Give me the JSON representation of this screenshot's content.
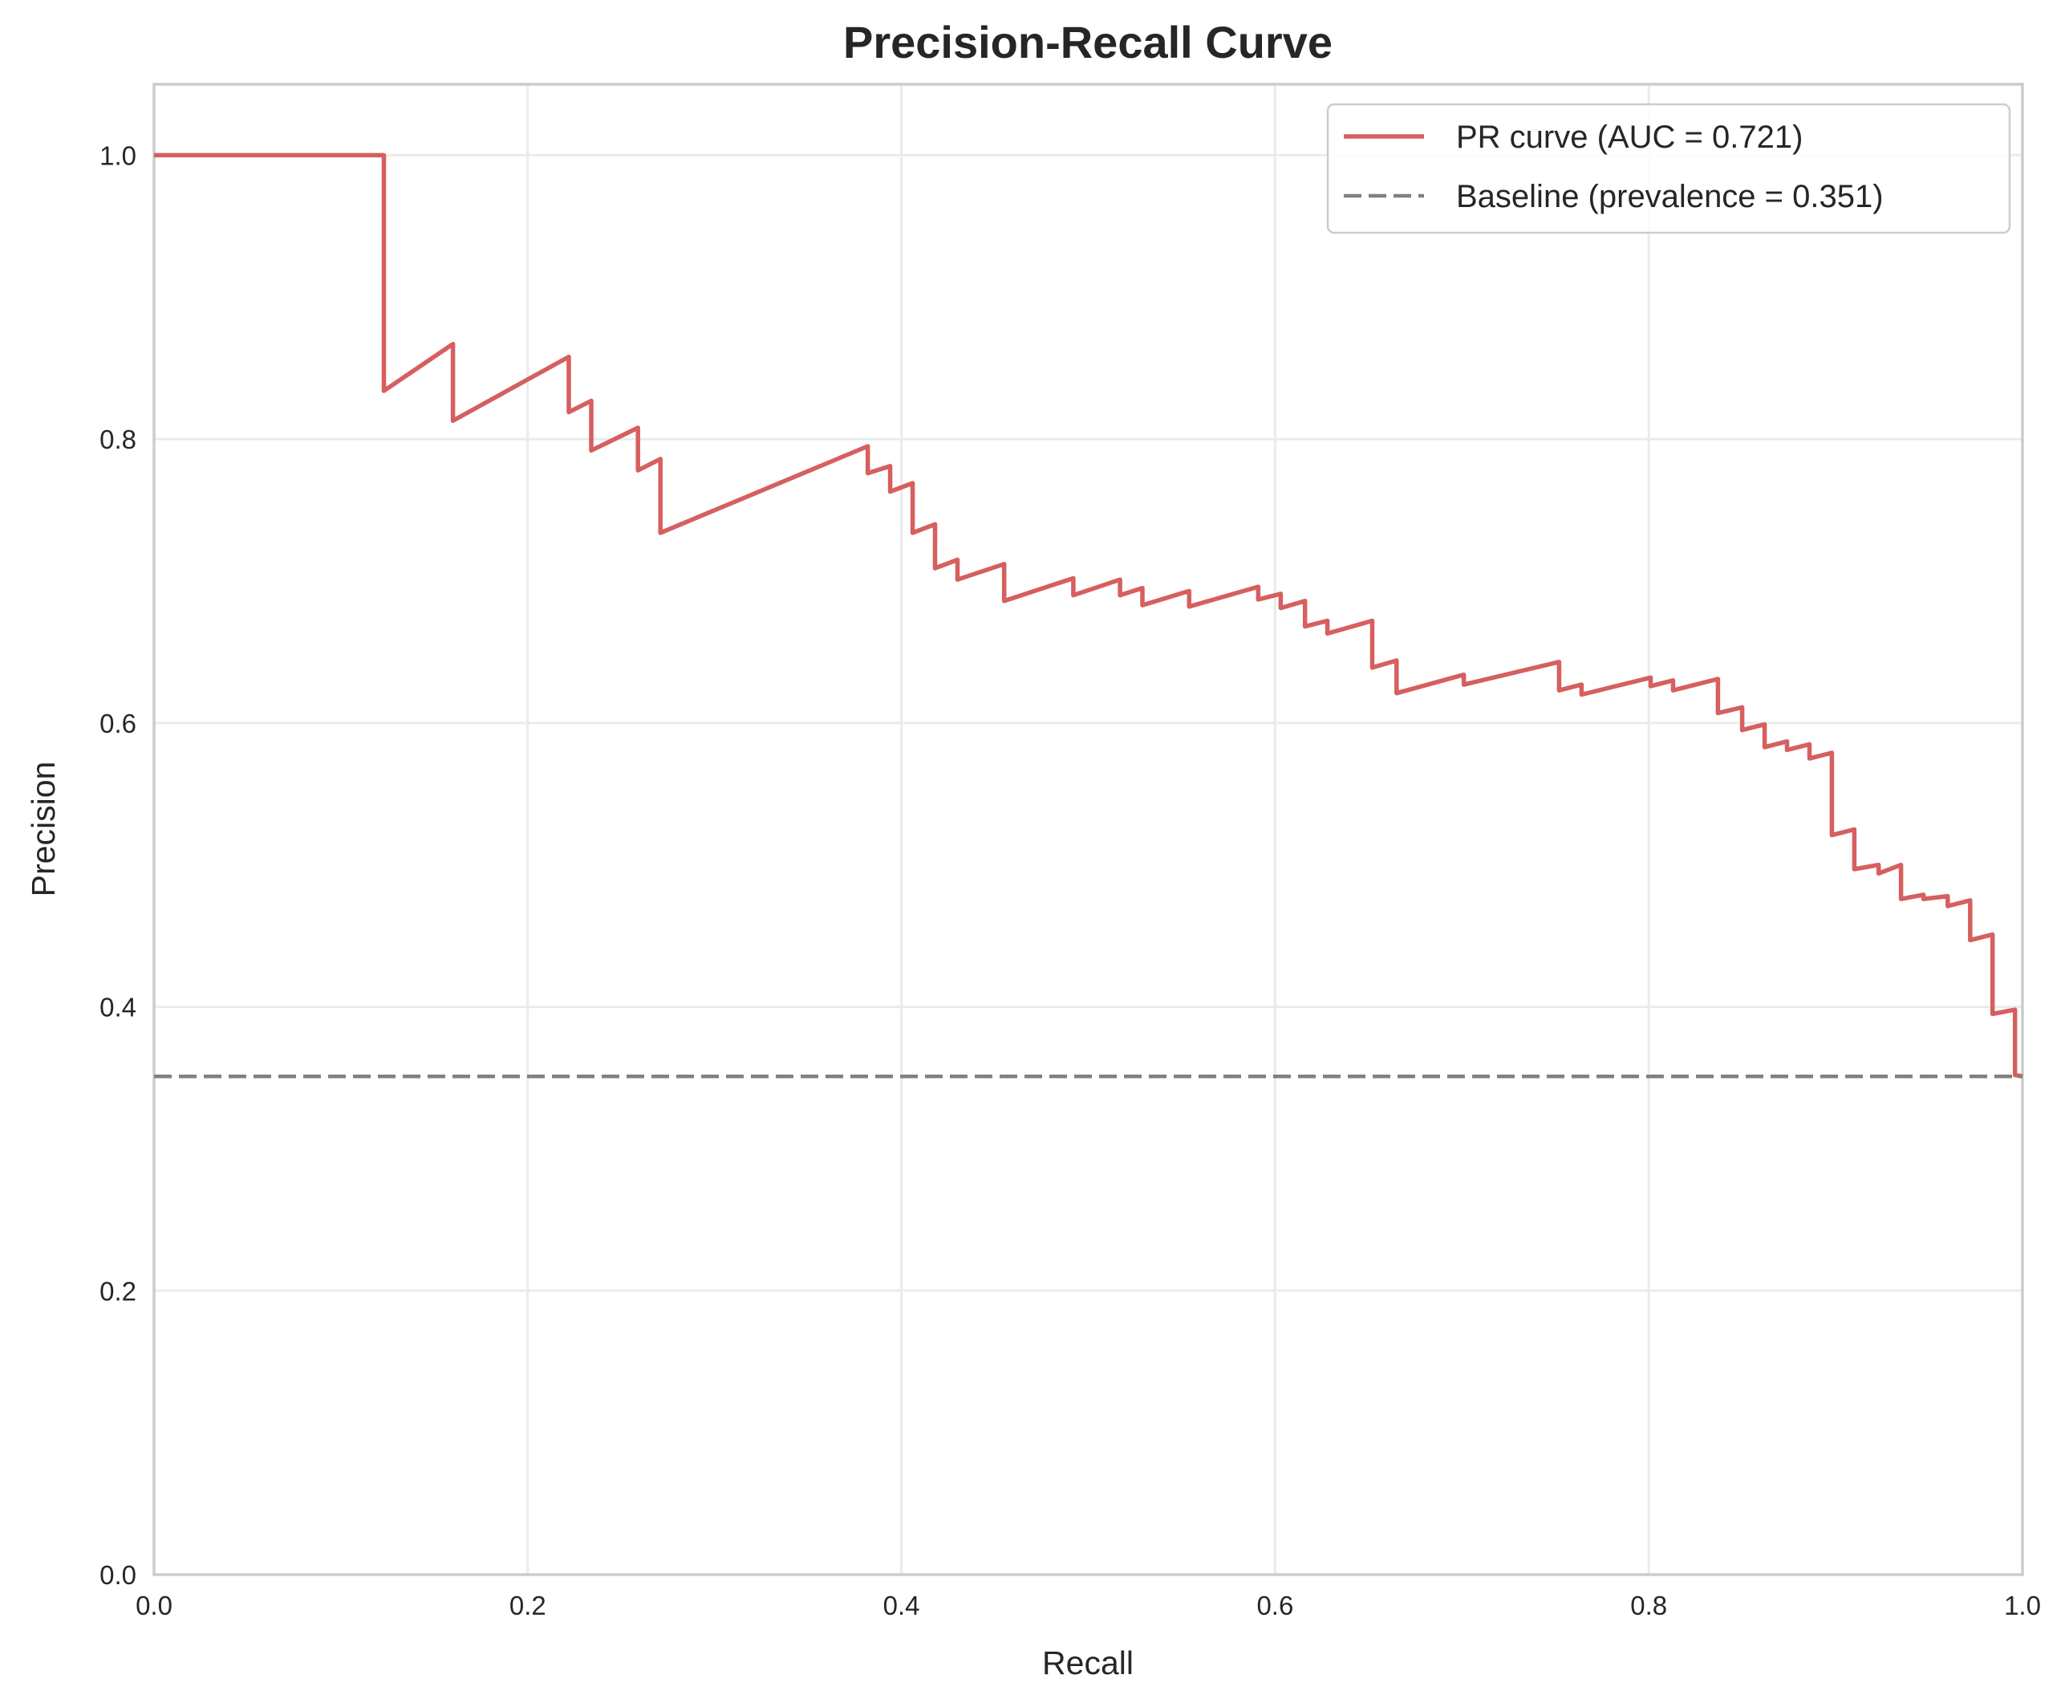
{
  "chart_data": {
    "type": "line",
    "title": "Precision-Recall Curve",
    "xlabel": "Recall",
    "ylabel": "Precision",
    "xlim": [
      0,
      1
    ],
    "ylim": [
      0,
      1.05
    ],
    "x_ticks": [
      0.0,
      0.2,
      0.4,
      0.6,
      0.8,
      1.0
    ],
    "x_tick_labels": [
      "0.0",
      "0.2",
      "0.4",
      "0.6",
      "0.8",
      "1.0"
    ],
    "y_ticks": [
      0.0,
      0.2,
      0.4,
      0.6,
      0.8,
      1.0
    ],
    "y_tick_labels": [
      "0.0",
      "0.2",
      "0.4",
      "0.6",
      "0.8",
      "1.0"
    ],
    "grid": true,
    "legend_position": "top-right",
    "series": [
      {
        "name": "PR curve (AUC = 0.721)",
        "color": "#d65f5f",
        "style": "solid",
        "points": [
          [
            0.0,
            1.0
          ],
          [
            0.123,
            1.0
          ],
          [
            0.123,
            0.834
          ],
          [
            0.16,
            0.867
          ],
          [
            0.16,
            0.813
          ],
          [
            0.222,
            0.858
          ],
          [
            0.222,
            0.819
          ],
          [
            0.234,
            0.827
          ],
          [
            0.234,
            0.792
          ],
          [
            0.259,
            0.808
          ],
          [
            0.259,
            0.778
          ],
          [
            0.271,
            0.786
          ],
          [
            0.271,
            0.734
          ],
          [
            0.382,
            0.795
          ],
          [
            0.382,
            0.776
          ],
          [
            0.394,
            0.781
          ],
          [
            0.394,
            0.763
          ],
          [
            0.406,
            0.769
          ],
          [
            0.406,
            0.734
          ],
          [
            0.418,
            0.74
          ],
          [
            0.418,
            0.709
          ],
          [
            0.43,
            0.715
          ],
          [
            0.43,
            0.701
          ],
          [
            0.455,
            0.712
          ],
          [
            0.455,
            0.686
          ],
          [
            0.492,
            0.702
          ],
          [
            0.492,
            0.69
          ],
          [
            0.517,
            0.701
          ],
          [
            0.517,
            0.69
          ],
          [
            0.529,
            0.695
          ],
          [
            0.529,
            0.683
          ],
          [
            0.554,
            0.693
          ],
          [
            0.554,
            0.682
          ],
          [
            0.591,
            0.696
          ],
          [
            0.591,
            0.687
          ],
          [
            0.603,
            0.691
          ],
          [
            0.603,
            0.681
          ],
          [
            0.616,
            0.686
          ],
          [
            0.616,
            0.668
          ],
          [
            0.628,
            0.672
          ],
          [
            0.628,
            0.663
          ],
          [
            0.652,
            0.672
          ],
          [
            0.652,
            0.639
          ],
          [
            0.665,
            0.644
          ],
          [
            0.665,
            0.621
          ],
          [
            0.701,
            0.634
          ],
          [
            0.701,
            0.627
          ],
          [
            0.752,
            0.643
          ],
          [
            0.752,
            0.623
          ],
          [
            0.764,
            0.627
          ],
          [
            0.764,
            0.62
          ],
          [
            0.801,
            0.632
          ],
          [
            0.801,
            0.626
          ],
          [
            0.813,
            0.63
          ],
          [
            0.813,
            0.623
          ],
          [
            0.837,
            0.631
          ],
          [
            0.837,
            0.607
          ],
          [
            0.85,
            0.611
          ],
          [
            0.85,
            0.595
          ],
          [
            0.862,
            0.599
          ],
          [
            0.862,
            0.583
          ],
          [
            0.874,
            0.587
          ],
          [
            0.874,
            0.581
          ],
          [
            0.886,
            0.585
          ],
          [
            0.886,
            0.575
          ],
          [
            0.898,
            0.579
          ],
          [
            0.898,
            0.521
          ],
          [
            0.91,
            0.525
          ],
          [
            0.91,
            0.497
          ],
          [
            0.923,
            0.5
          ],
          [
            0.923,
            0.494
          ],
          [
            0.935,
            0.5
          ],
          [
            0.935,
            0.476
          ],
          [
            0.947,
            0.479
          ],
          [
            0.947,
            0.476
          ],
          [
            0.96,
            0.478
          ],
          [
            0.96,
            0.471
          ],
          [
            0.972,
            0.475
          ],
          [
            0.972,
            0.447
          ],
          [
            0.984,
            0.451
          ],
          [
            0.984,
            0.395
          ],
          [
            0.996,
            0.398
          ],
          [
            0.996,
            0.352
          ],
          [
            1.0,
            0.351
          ]
        ]
      },
      {
        "name": "Baseline (prevalence = 0.351)",
        "color": "#808080",
        "style": "dashed",
        "points": [
          [
            0.0,
            0.351
          ],
          [
            1.0,
            0.351
          ]
        ]
      }
    ]
  }
}
